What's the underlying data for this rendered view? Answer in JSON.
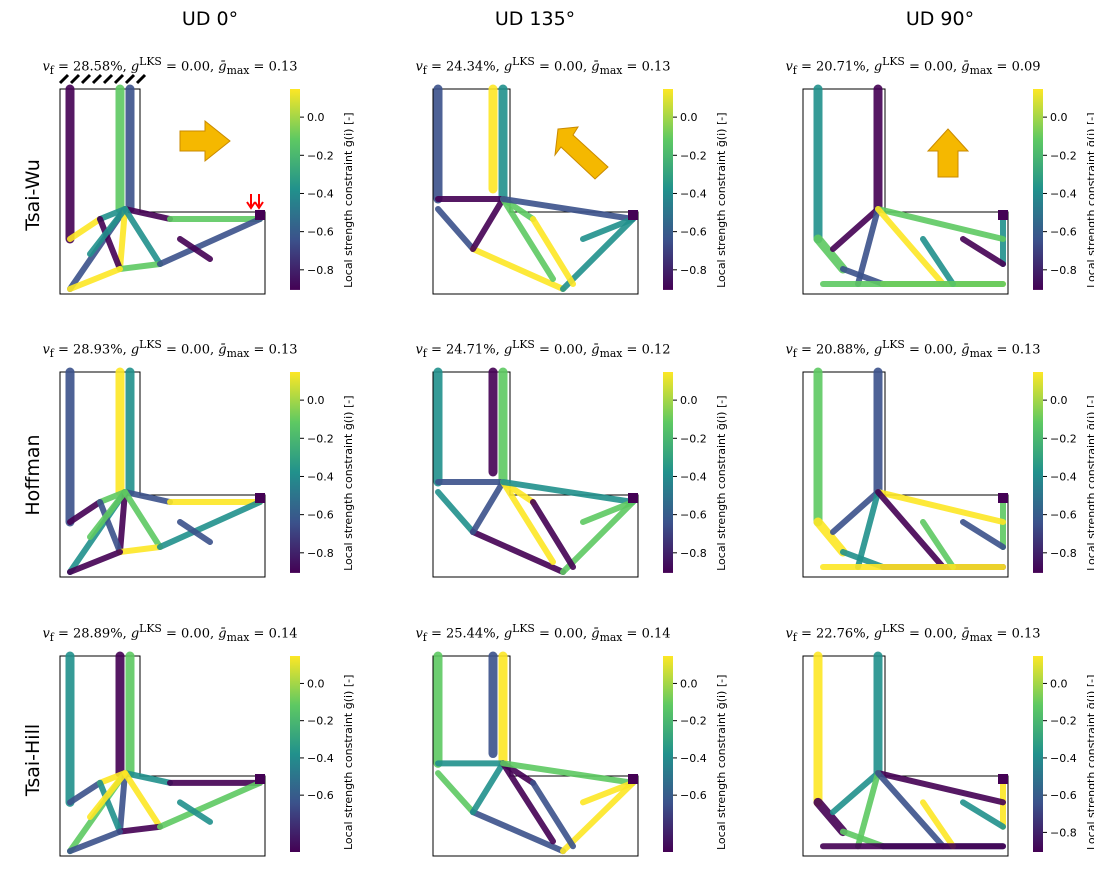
{
  "columns": [
    "UD 0°",
    "UD 135°",
    "UD 90°"
  ],
  "rows": [
    "Tsai-Wu",
    "Hoffman",
    "Tsai-Hill"
  ],
  "colorbar": {
    "label": "Local strength constraint ḡ(i) [-]",
    "ticks_full": [
      "0.0",
      "−0.2",
      "−0.4",
      "−0.6",
      "−0.8"
    ],
    "ticks_short": [
      "0.0",
      "−0.2",
      "−0.4",
      "−0.6"
    ]
  },
  "stats_labels": {
    "vf": "v",
    "vf_sub": "f",
    "g": "g",
    "g_sup": "LKS",
    "gmax": "ḡ",
    "gmax_sub": "max"
  },
  "panels": [
    [
      {
        "vf": "28.58%",
        "g": "0.00",
        "gmax": "0.13",
        "arrow": "right"
      },
      {
        "vf": "24.34%",
        "g": "0.00",
        "gmax": "0.13",
        "arrow": "up-left"
      },
      {
        "vf": "20.71%",
        "g": "0.00",
        "gmax": "0.09",
        "arrow": "up"
      }
    ],
    [
      {
        "vf": "28.93%",
        "g": "0.00",
        "gmax": "0.13"
      },
      {
        "vf": "24.71%",
        "g": "0.00",
        "gmax": "0.12"
      },
      {
        "vf": "20.88%",
        "g": "0.00",
        "gmax": "0.13"
      }
    ],
    [
      {
        "vf": "28.89%",
        "g": "0.00",
        "gmax": "0.14"
      },
      {
        "vf": "25.44%",
        "g": "0.00",
        "gmax": "0.14"
      },
      {
        "vf": "22.76%",
        "g": "0.00",
        "gmax": "0.13"
      }
    ]
  ],
  "colors": {
    "viridis": [
      "#440154",
      "#3b528b",
      "#21918c",
      "#5ec962",
      "#fde725"
    ],
    "arrow_fill": "#f5b800",
    "arrow_stroke": "#c98a00",
    "load_arrow": "#ff0000"
  }
}
